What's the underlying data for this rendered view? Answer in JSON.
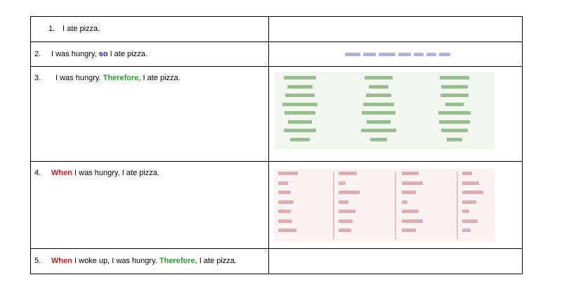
{
  "rows": [
    {
      "number": "1.",
      "parts": [
        {
          "text": "I ate pizza."
        }
      ]
    },
    {
      "number": "2.",
      "parts": [
        {
          "text": "I was hungry, "
        },
        {
          "text": "so",
          "kw": "so"
        },
        {
          "text": " I ate pizza."
        }
      ]
    },
    {
      "number": "3.",
      "parts": [
        {
          "text": "I was hungry. "
        },
        {
          "text": "Therefore",
          "kw": "therefore"
        },
        {
          "text": ", I ate pizza."
        }
      ]
    },
    {
      "number": "4.",
      "parts": [
        {
          "text": "When",
          "kw": "when"
        },
        {
          "text": " I was hungry, I ate pizza."
        }
      ]
    },
    {
      "number": "5.",
      "parts": [
        {
          "text": "When",
          "kw": "when"
        },
        {
          "text": " I woke up, I was hungry. "
        },
        {
          "text": "Therefore",
          "kw": "therefore"
        },
        {
          "text": ", I ate pizza."
        }
      ]
    }
  ],
  "colors": {
    "so": "#1a1aa8",
    "therefore": "#2a9a2a",
    "when": "#cc1f1f",
    "border": "#000000"
  }
}
